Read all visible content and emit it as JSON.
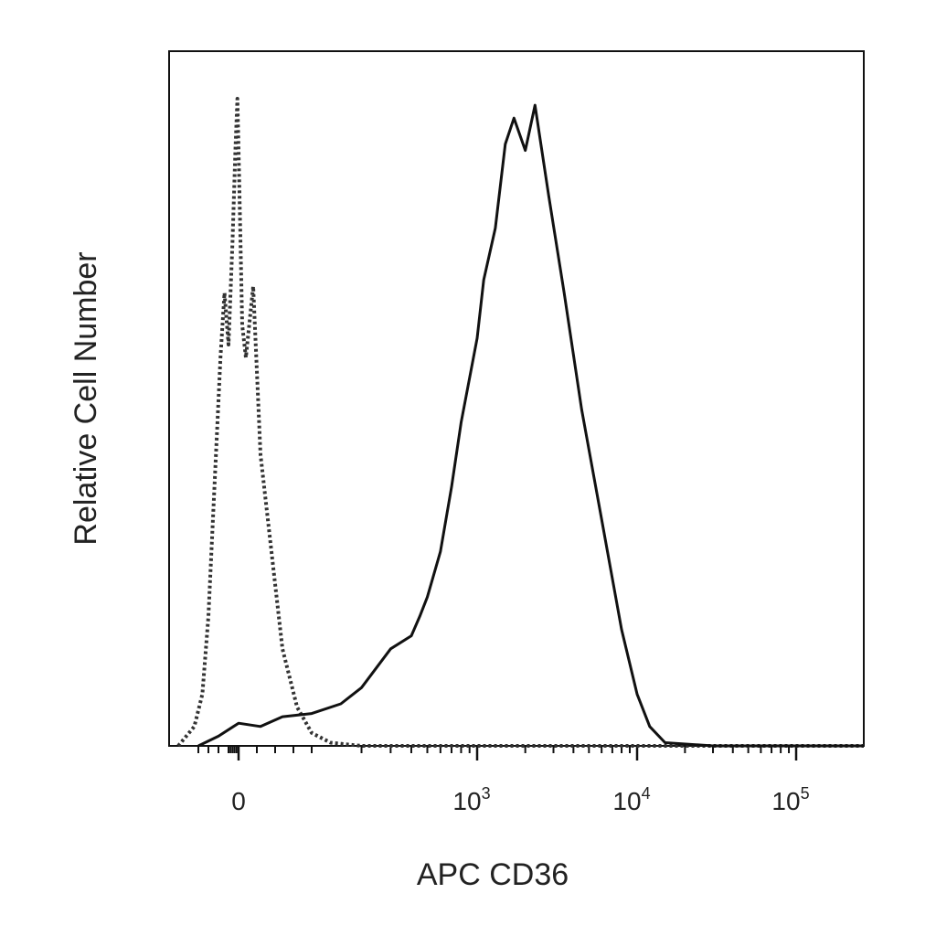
{
  "chart_data": {
    "type": "line",
    "title": "",
    "xlabel": "APC CD36",
    "ylabel": "Relative Cell Number",
    "x_scale": "biexponential",
    "xlim": [
      -150,
      150000
    ],
    "ylim": [
      0,
      100
    ],
    "y_ticks_shown": false,
    "grid": false,
    "legend": "none",
    "x_tick_labels": [
      {
        "value": 0,
        "base": "0",
        "exp": ""
      },
      {
        "value": 1000,
        "base": "10",
        "exp": "3"
      },
      {
        "value": 10000,
        "base": "10",
        "exp": "4"
      },
      {
        "value": 100000,
        "base": "10",
        "exp": "5"
      }
    ],
    "series": [
      {
        "style": "dotted",
        "color": "#333333",
        "x": [
          -150,
          -110,
          -90,
          -75,
          -60,
          -45,
          -35,
          -25,
          -15,
          -8,
          -3,
          0,
          5,
          10,
          20,
          30,
          45,
          60,
          80,
          100,
          130,
          200,
          1000,
          10000,
          150000
        ],
        "y": [
          0,
          3,
          8,
          20,
          40,
          60,
          70,
          62,
          78,
          92,
          100,
          92,
          65,
          60,
          71,
          45,
          30,
          15,
          6,
          2,
          0.5,
          0,
          0,
          0,
          0
        ]
      },
      {
        "style": "solid",
        "color": "#111111",
        "x": [
          -100,
          -50,
          0,
          30,
          60,
          100,
          150,
          200,
          300,
          400,
          450,
          500,
          600,
          700,
          800,
          1000,
          1100,
          1300,
          1500,
          1700,
          2000,
          2300,
          2800,
          3500,
          4500,
          6000,
          8000,
          10000,
          12000,
          15000,
          30000,
          150000
        ],
        "y": [
          0,
          1.5,
          3.5,
          3.0,
          4.5,
          5.0,
          6.5,
          9.0,
          15.0,
          17.0,
          20.0,
          23.0,
          30.0,
          40.0,
          50.0,
          63.0,
          72.0,
          80.0,
          93.0,
          97.0,
          92.0,
          99.0,
          85.0,
          70.0,
          52.0,
          35.0,
          18.0,
          8.0,
          3.0,
          0.5,
          0,
          0
        ]
      }
    ]
  }
}
